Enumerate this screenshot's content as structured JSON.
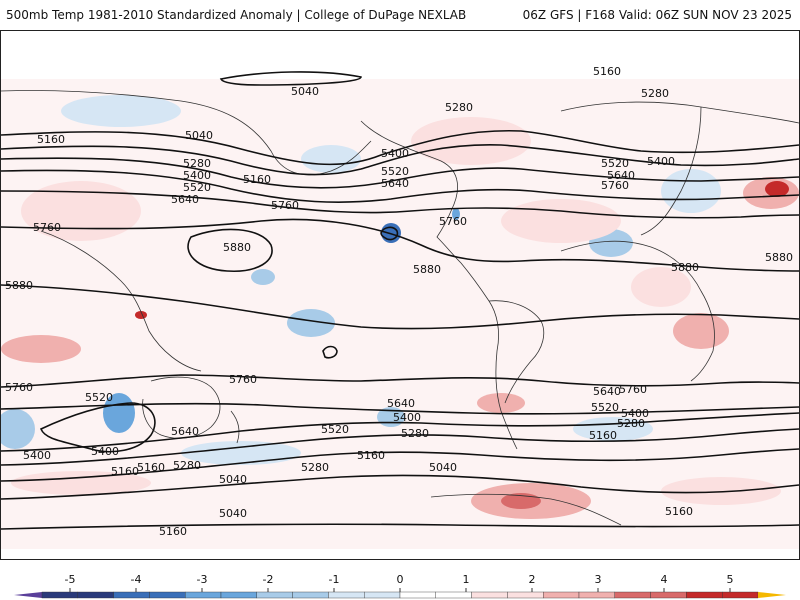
{
  "header": {
    "left_title": "500mb Temp 1981-2010 Standardized Anomaly | College of DuPage NEXLAB",
    "right_title": "06Z GFS | F168 Valid: 06Z SUN NOV 23 2025"
  },
  "colorbar": {
    "ticks": [
      "-5",
      "-4",
      "-3",
      "-2",
      "-1",
      "0",
      "1",
      "2",
      "3",
      "4",
      "5"
    ],
    "colors": [
      "#5a3f9a",
      "#2a3a7a",
      "#3a6fb8",
      "#6aa6dc",
      "#a8cbe8",
      "#d6e6f4",
      "#ffffff",
      "#fbe0e0",
      "#f0b0ae",
      "#d86a6a",
      "#c42a2a",
      "#8a0a0a",
      "#f5b800"
    ]
  },
  "contours": {
    "labels": [
      "5160",
      "5040",
      "5040",
      "5160",
      "5280",
      "5400",
      "5520",
      "5640",
      "5760",
      "5160",
      "5280",
      "5400",
      "5520",
      "5640",
      "5760",
      "5280",
      "5400",
      "5520",
      "5640",
      "5760",
      "5880",
      "5880",
      "5880",
      "5880",
      "5880",
      "5760",
      "5760",
      "5520",
      "5640",
      "5760",
      "5640",
      "5520",
      "5400",
      "5280",
      "5400",
      "5160",
      "5280",
      "5040",
      "5040",
      "5160",
      "5160",
      "5160",
      "5640",
      "5520",
      "5400",
      "5280",
      "5160",
      "5760",
      "5400",
      "5280",
      "5160",
      "5040"
    ]
  },
  "colors": {
    "contour_line": "#111111",
    "coast_line": "#333333",
    "warm_light": "#fbe0e0",
    "warm_mid": "#f0b0ae",
    "warm_strong": "#d86a6a",
    "warm_deep": "#c42a2a",
    "cold_light": "#d6e6f4",
    "cold_mid": "#a8cbe8",
    "cold_strong": "#6aa6dc",
    "cold_deep": "#3a6fb8"
  }
}
